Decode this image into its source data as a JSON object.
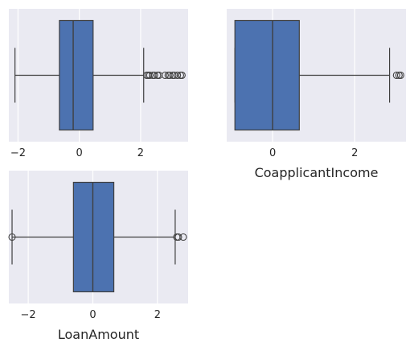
{
  "chart_data": [
    {
      "type": "box",
      "xlabel": "",
      "xlim": [
        -2.3,
        3.55
      ],
      "xticks": [
        -2,
        0,
        2
      ],
      "xtick_labels": [
        "−2",
        "0",
        "2"
      ],
      "grid": true,
      "q1": -0.65,
      "median": -0.2,
      "q3": 0.45,
      "whisker_low": -2.1,
      "whisker_high": 2.1,
      "outliers": [
        2.2,
        2.25,
        2.3,
        2.4,
        2.45,
        2.55,
        2.6,
        2.8,
        2.9,
        2.95,
        3.05,
        3.1,
        3.2,
        3.3,
        3.35
      ]
    },
    {
      "type": "box",
      "xlabel": "CoapplicantIncome",
      "xlim": [
        -1.12,
        3.25
      ],
      "xticks": [
        0,
        2
      ],
      "xtick_labels": [
        "0",
        "2"
      ],
      "grid": true,
      "q1": -0.92,
      "median": 0.0,
      "q3": 0.65,
      "whisker_low": -0.92,
      "whisker_high": 2.85,
      "outliers": [
        3.02,
        3.08,
        3.12
      ]
    },
    {
      "type": "box",
      "xlabel": "LoanAmount",
      "xlim": [
        -2.6,
        2.95
      ],
      "xticks": [
        -2,
        0,
        2
      ],
      "xtick_labels": [
        "−2",
        "0",
        "2"
      ],
      "grid": true,
      "q1": -0.6,
      "median": 0.0,
      "q3": 0.65,
      "whisker_low": -2.5,
      "whisker_high": 2.55,
      "outliers": [
        -2.5,
        2.6,
        2.65,
        2.8
      ]
    }
  ]
}
